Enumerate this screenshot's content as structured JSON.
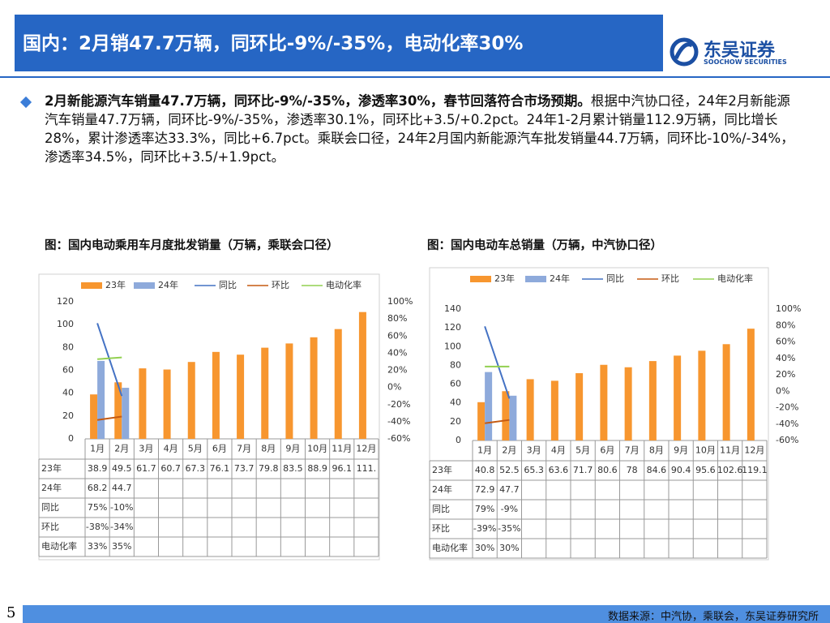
{
  "header": {
    "title": "国内：2月销47.7万辆，同环比-9%/-35%，电动化率30%"
  },
  "logo": {
    "name": "东吴证券",
    "sub": "SOOCHOW SECURITIES"
  },
  "bullet": {
    "bold": "2月新能源汽车销量47.7万辆，同环比-9%/-35%，渗透率30%，春节回落符合市场预期。",
    "text": "根据中汽协口径，24年2月新能源汽车销量47.7万辆，同环比-9%/-35%，渗透率30.1%，同环比+3.5/+0.2pct。24年1-2月累计销量112.9万辆，同比增长28%，累计渗透率达33.3%，同比+6.7pct。乘联会口径，24年2月国内新能源汽车批发销量44.7万辆，同环比-10%/-34%，渗透率34.5%，同环比+3.5/+1.9pct。"
  },
  "footer": {
    "page": "5",
    "source": "数据来源：中汽协，乘联会，东吴证券研究所"
  },
  "chart_data": [
    {
      "type": "bar",
      "title": "图：国内电动乘用车月度批发销量（万辆，乘联会口径）",
      "categories": [
        "1月",
        "2月",
        "3月",
        "4月",
        "5月",
        "6月",
        "7月",
        "8月",
        "9月",
        "10月",
        "11月",
        "12月"
      ],
      "ylim": [
        0,
        120
      ],
      "yticks": [
        0,
        20,
        40,
        60,
        80,
        100,
        120
      ],
      "y2lim": [
        -60,
        100
      ],
      "y2ticks": [
        {
          "value": -60,
          "label": "-60%"
        },
        {
          "value": -40,
          "label": "-40%"
        },
        {
          "value": -20,
          "label": "-20%"
        },
        {
          "value": 0,
          "label": "0%"
        },
        {
          "value": 20,
          "label": "20%"
        },
        {
          "value": 40,
          "label": "40%"
        },
        {
          "value": 60,
          "label": "60%"
        },
        {
          "value": 80,
          "label": "80%"
        },
        {
          "value": 100,
          "label": "100%"
        }
      ],
      "series": [
        {
          "name": "23年",
          "type": "bar",
          "color": "#f7962f",
          "values": [
            38.9,
            49.5,
            61.7,
            60.7,
            67.3,
            76.1,
            73.7,
            79.8,
            83.5,
            88.9,
            96.1,
            111
          ],
          "value_labels": [
            "38.9",
            "49.5",
            "61.7",
            "60.7",
            "67.3",
            "76.1",
            "73.7",
            "79.8",
            "83.5",
            "88.9",
            "96.1",
            "111."
          ]
        },
        {
          "name": "24年",
          "type": "bar",
          "color": "#8eaadb",
          "values": [
            68.2,
            44.7,
            null,
            null,
            null,
            null,
            null,
            null,
            null,
            null,
            null,
            null
          ]
        },
        {
          "name": "同比",
          "type": "line",
          "axis": "y2",
          "color": "#4472c4",
          "values": [
            75,
            -10,
            null,
            null,
            null,
            null,
            null,
            null,
            null,
            null,
            null,
            null
          ],
          "value_labels": [
            "75%",
            "-10%",
            null,
            null,
            null,
            null,
            null,
            null,
            null,
            null,
            null,
            null
          ]
        },
        {
          "name": "环比",
          "type": "line",
          "axis": "y2",
          "color": "#c55a11",
          "values": [
            -38,
            -34,
            null,
            null,
            null,
            null,
            null,
            null,
            null,
            null,
            null,
            null
          ],
          "value_labels": [
            "-38%",
            "-34%",
            null,
            null,
            null,
            null,
            null,
            null,
            null,
            null,
            null,
            null
          ]
        },
        {
          "name": "电动化率",
          "type": "line",
          "axis": "y2",
          "color": "#92d050",
          "values": [
            33,
            35,
            null,
            null,
            null,
            null,
            null,
            null,
            null,
            null,
            null,
            null
          ],
          "value_labels": [
            "33%",
            "35%",
            null,
            null,
            null,
            null,
            null,
            null,
            null,
            null,
            null,
            null
          ]
        }
      ]
    },
    {
      "type": "bar",
      "title": "图：国内电动车总销量（万辆，中汽协口径）",
      "categories": [
        "1月",
        "2月",
        "3月",
        "4月",
        "5月",
        "6月",
        "7月",
        "8月",
        "9月",
        "10月",
        "11月",
        "12月"
      ],
      "ylim": [
        0,
        140
      ],
      "yticks": [
        0,
        20,
        40,
        60,
        80,
        100,
        120,
        140
      ],
      "y2lim": [
        -60,
        100
      ],
      "y2ticks": [
        {
          "value": -60,
          "label": "-60%"
        },
        {
          "value": -40,
          "label": "-40%"
        },
        {
          "value": -20,
          "label": "-20%"
        },
        {
          "value": 0,
          "label": "0%"
        },
        {
          "value": 20,
          "label": "20%"
        },
        {
          "value": 40,
          "label": "40%"
        },
        {
          "value": 60,
          "label": "60%"
        },
        {
          "value": 80,
          "label": "80%"
        },
        {
          "value": 100,
          "label": "100%"
        }
      ],
      "series": [
        {
          "name": "23年",
          "type": "bar",
          "color": "#f7962f",
          "values": [
            40.8,
            52.5,
            65.3,
            63.6,
            71.7,
            80.6,
            78,
            84.6,
            90.4,
            95.6,
            102.6,
            119.1
          ]
        },
        {
          "name": "24年",
          "type": "bar",
          "color": "#8eaadb",
          "values": [
            72.9,
            47.7,
            null,
            null,
            null,
            null,
            null,
            null,
            null,
            null,
            null,
            null
          ]
        },
        {
          "name": "同比",
          "type": "line",
          "axis": "y2",
          "color": "#4472c4",
          "values": [
            79,
            -9,
            null,
            null,
            null,
            null,
            null,
            null,
            null,
            null,
            null,
            null
          ],
          "value_labels": [
            "79%",
            "-9%",
            null,
            null,
            null,
            null,
            null,
            null,
            null,
            null,
            null,
            null
          ]
        },
        {
          "name": "环比",
          "type": "line",
          "axis": "y2",
          "color": "#c55a11",
          "values": [
            -39,
            -35,
            null,
            null,
            null,
            null,
            null,
            null,
            null,
            null,
            null,
            null
          ],
          "value_labels": [
            "-39%",
            "-35%",
            null,
            null,
            null,
            null,
            null,
            null,
            null,
            null,
            null,
            null
          ]
        },
        {
          "name": "电动化率",
          "type": "line",
          "axis": "y2",
          "color": "#92d050",
          "values": [
            30,
            30,
            null,
            null,
            null,
            null,
            null,
            null,
            null,
            null,
            null,
            null
          ],
          "value_labels": [
            "30%",
            "30%",
            null,
            null,
            null,
            null,
            null,
            null,
            null,
            null,
            null,
            null
          ]
        }
      ]
    }
  ]
}
